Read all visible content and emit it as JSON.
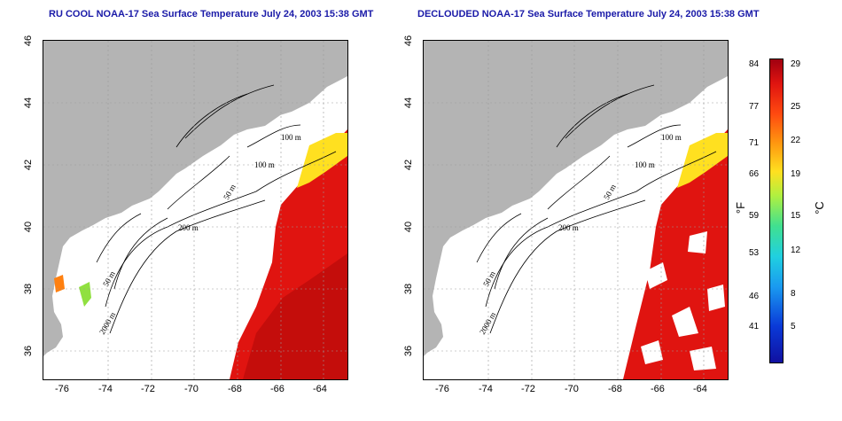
{
  "titles": {
    "left": "RU COOL NOAA-17 Sea Surface Temperature July 24, 2003 15:38 GMT",
    "right": "DECLOUDED NOAA-17 Sea Surface Temperature July 24, 2003 15:38 GMT"
  },
  "axes": {
    "lon_ticks": [
      "-76",
      "-74",
      "-72",
      "-70",
      "-68",
      "-66",
      "-64"
    ],
    "lat_ticks": [
      "46",
      "44",
      "42",
      "40",
      "38",
      "36"
    ]
  },
  "contours": {
    "label_100_upper": "100 m",
    "label_100_lower": "100 m",
    "label_50_gulf": "50 m",
    "label_200": "200 m",
    "label_50_coast": "50 m",
    "label_2000": "2000 m"
  },
  "colorbar": {
    "fahrenheit_ticks": [
      "84",
      "77",
      "71",
      "66",
      "59",
      "53",
      "46",
      "41"
    ],
    "celsius_ticks": [
      "29",
      "25",
      "22",
      "19",
      "15",
      "12",
      "8",
      "5"
    ],
    "fahrenheit_unit": "°F",
    "celsius_unit": "°C",
    "colors": {
      "land": "#b4b4b4",
      "warm": "#e01410",
      "hot": "#b80a0a",
      "cool": "#ffe020"
    }
  }
}
